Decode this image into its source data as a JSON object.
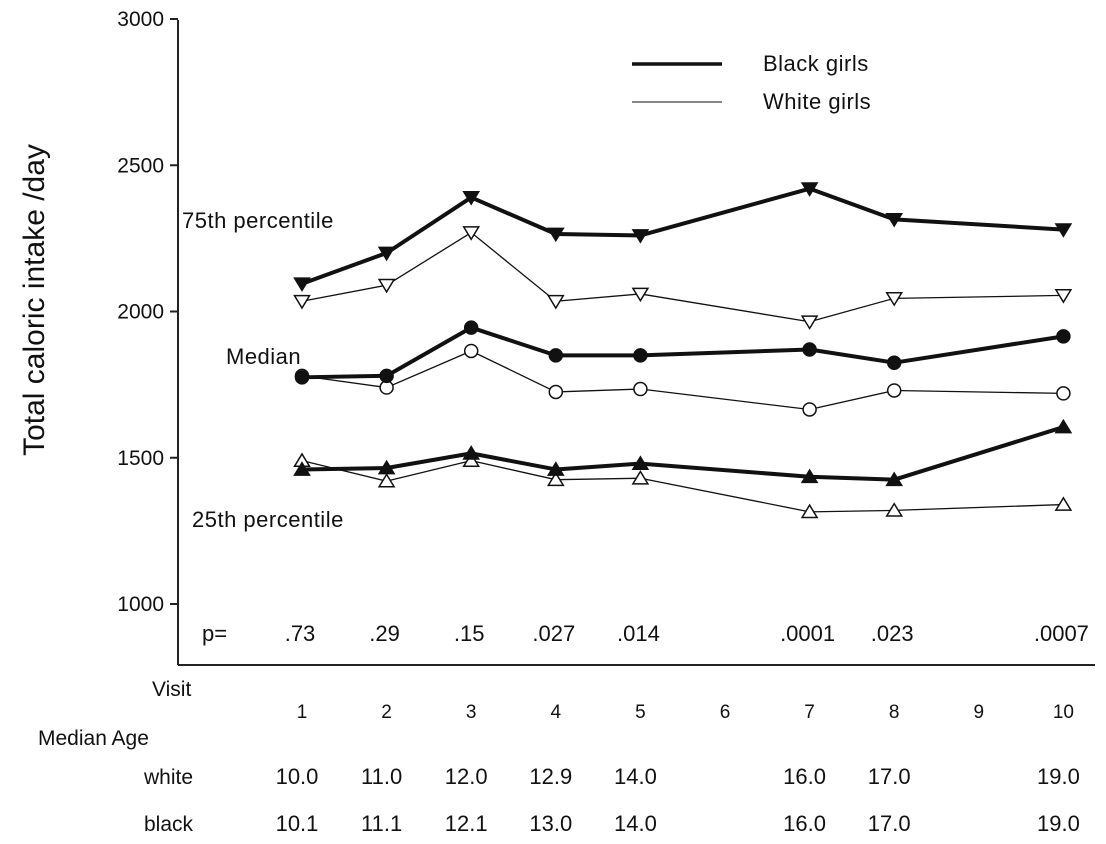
{
  "chart_data": {
    "type": "line",
    "ylabel": "Total caloric intake /day",
    "ylim": [
      1000,
      3000
    ],
    "yticks": [
      1000,
      1500,
      2000,
      2500,
      3000
    ],
    "x": [
      1,
      2,
      3,
      4,
      5,
      6,
      7,
      8,
      9,
      10
    ],
    "x_row_label": "Visit",
    "age_row_label": "Median Age",
    "age_rows": [
      {
        "label": "white",
        "visits": [
          1,
          2,
          3,
          4,
          5,
          7,
          8,
          10
        ],
        "values": [
          "10.0",
          "11.0",
          "12.0",
          "12.9",
          "14.0",
          "16.0",
          "17.0",
          "19.0"
        ]
      },
      {
        "label": "black",
        "visits": [
          1,
          2,
          3,
          4,
          5,
          7,
          8,
          10
        ],
        "values": [
          "10.1",
          "11.1",
          "12.1",
          "13.0",
          "14.0",
          "16.0",
          "17.0",
          "19.0"
        ]
      }
    ],
    "p_label": "p=",
    "p_values": [
      {
        "visit": 1,
        "p": ".73"
      },
      {
        "visit": 2,
        "p": ".29"
      },
      {
        "visit": 3,
        "p": ".15"
      },
      {
        "visit": 4,
        "p": ".027"
      },
      {
        "visit": 5,
        "p": ".014"
      },
      {
        "visit": 7,
        "p": ".0001"
      },
      {
        "visit": 8,
        "p": ".023"
      },
      {
        "visit": 10,
        "p": ".0007"
      }
    ],
    "legend": [
      {
        "name": "Black girls",
        "style": "thick"
      },
      {
        "name": "White girls",
        "style": "thin"
      }
    ],
    "legend_position": "top-right",
    "group_labels": [
      {
        "text": "75th percentile",
        "group": "75th"
      },
      {
        "text": "Median",
        "group": "median"
      },
      {
        "text": "25th percentile",
        "group": "25th"
      }
    ],
    "series": [
      {
        "name": "Black girls",
        "group": "75th",
        "marker": "triangle-down-filled",
        "x": [
          1,
          2,
          3,
          4,
          5,
          7,
          8,
          10
        ],
        "y": [
          2095,
          2200,
          2390,
          2265,
          2260,
          2420,
          2315,
          2280
        ]
      },
      {
        "name": "White girls",
        "group": "75th",
        "marker": "triangle-down-open",
        "x": [
          1,
          2,
          3,
          4,
          5,
          7,
          8,
          10
        ],
        "y": [
          2035,
          2090,
          2270,
          2035,
          2060,
          1965,
          2045,
          2055
        ]
      },
      {
        "name": "Black girls",
        "group": "median",
        "marker": "circle-filled",
        "x": [
          1,
          2,
          3,
          4,
          5,
          7,
          8,
          10
        ],
        "y": [
          1775,
          1780,
          1945,
          1850,
          1850,
          1870,
          1825,
          1915
        ]
      },
      {
        "name": "White girls",
        "group": "median",
        "marker": "circle-open",
        "x": [
          1,
          2,
          3,
          4,
          5,
          7,
          8,
          10
        ],
        "y": [
          1780,
          1740,
          1865,
          1725,
          1735,
          1665,
          1730,
          1720
        ]
      },
      {
        "name": "Black girls",
        "group": "25th",
        "marker": "triangle-up-filled",
        "x": [
          1,
          2,
          3,
          4,
          5,
          7,
          8,
          10
        ],
        "y": [
          1460,
          1465,
          1515,
          1460,
          1480,
          1435,
          1425,
          1605
        ]
      },
      {
        "name": "White girls",
        "group": "25th",
        "marker": "triangle-up-open",
        "x": [
          1,
          2,
          3,
          4,
          5,
          7,
          8,
          10
        ],
        "y": [
          1490,
          1420,
          1490,
          1425,
          1430,
          1315,
          1320,
          1340
        ]
      }
    ]
  }
}
